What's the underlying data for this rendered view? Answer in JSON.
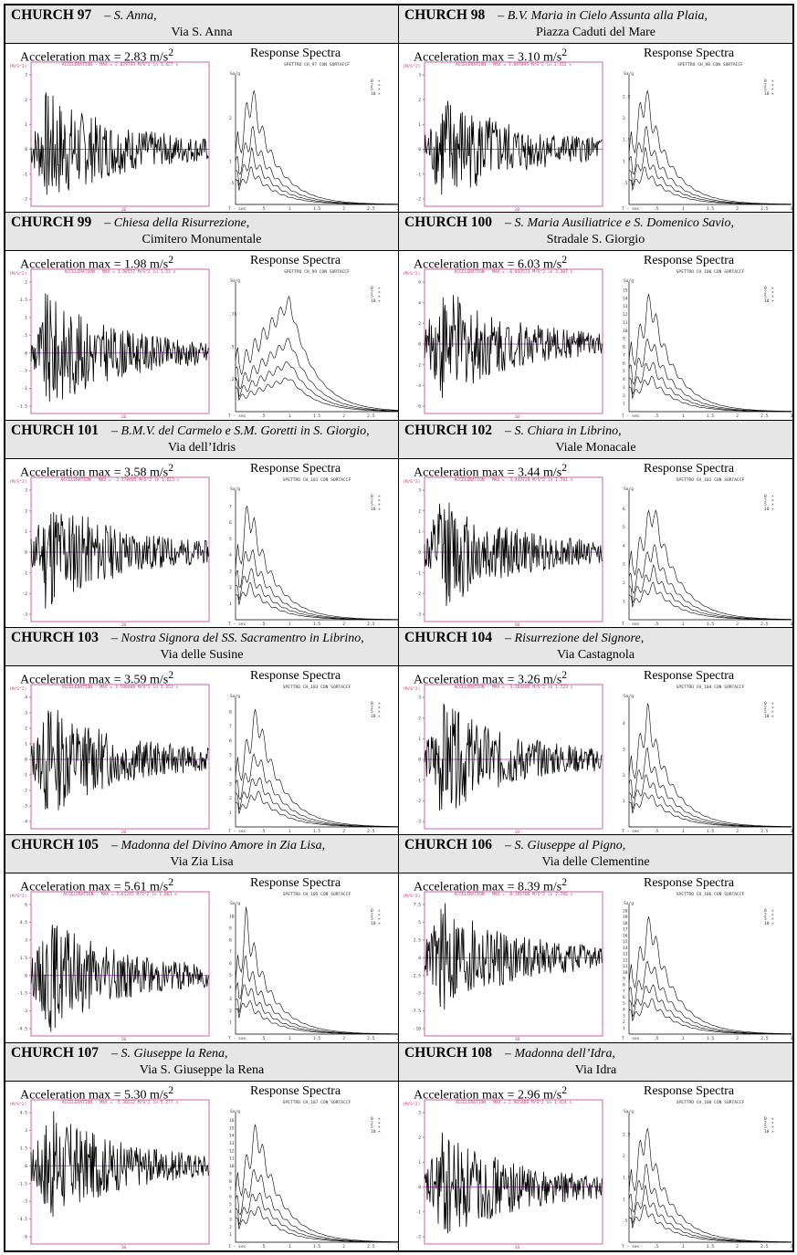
{
  "common": {
    "response_spectra_label": "Response Spectra",
    "acc_axis_label": "(M/S^2)",
    "time_tick_label": "10",
    "spectra_ylabel": "Sa/g",
    "spectra_xlabel": "T - sec",
    "period_ticks": [
      ".5",
      "1",
      "1.5",
      "2",
      "2.5",
      "3"
    ],
    "damping_legend": [
      "0",
      "2",
      "5",
      "10"
    ]
  },
  "churches": [
    {
      "num": "CHURCH 97",
      "name": "S. Anna",
      "address": "Via S. Anna",
      "acc_value": "2.83",
      "acc_unit": "m/s",
      "acc_exp": "2",
      "acc_caption": "ACCELERATION - MAX = 2.829793 M/S^2 in 1.427 s",
      "spec_caption": "SPETTRO CH_97 CON SORTACCF",
      "acc_ticks": [
        "3",
        "2",
        "1",
        "0",
        "-1",
        "-2"
      ],
      "spec_ticks": [
        "2",
        ".5",
        "1"
      ],
      "spec_ymax": 3,
      "peak_period": 0.3
    },
    {
      "num": "CHURCH 98",
      "name": "B.V. Maria in Cielo Assunta alla Plaia",
      "address": "Piazza Caduti del Mare",
      "acc_value": "3.10",
      "acc_unit": "m/s",
      "acc_exp": "2",
      "acc_caption": "ACCELERATION - MAX = 3.097895 M/S^2 in 1.432 s",
      "spec_caption": "SPETTRO CH_98 CON SORTACCF",
      "acc_ticks": [
        "3",
        "2",
        "1",
        "0",
        "-1",
        "-2"
      ],
      "spec_ticks": [
        "2.5",
        "2",
        "1.5",
        "1",
        ".5"
      ],
      "spec_ymax": 3,
      "peak_period": 0.3
    },
    {
      "num": "CHURCH 99",
      "name": "Chiesa della Risurrezione",
      "address": "Cimitero Monumentale",
      "acc_value": "1.98",
      "acc_unit": "m/s",
      "acc_exp": "2",
      "acc_caption": "ACCELERATION - MAX = 1.98557 M/S^2 in 1.53 s",
      "spec_caption": "SPETTRO CH_99 CON SORTACCF",
      "acc_ticks": [
        "2",
        "1.5",
        "1",
        ".5",
        "0",
        "-.5",
        "-1",
        "-1.5"
      ],
      "spec_ticks": [
        ".75",
        ".5",
        ".25"
      ],
      "spec_ymax": 1,
      "peak_period": 1.0
    },
    {
      "num": "CHURCH 100",
      "name": "S. Maria Ausiliatrice e S. Domenico Savio",
      "address": "Stradale S. Giorgio",
      "acc_value": "6.03",
      "acc_unit": "m/s",
      "acc_exp": "2",
      "acc_caption": "ACCELERATION - MAX = -6.033573 M/S^2 in 3.307 s",
      "spec_caption": "SPETTRO CH_100 CON SORTACCF",
      "acc_ticks": [
        "6",
        "4",
        "2",
        "0",
        "-2",
        "-4",
        "-6"
      ],
      "spec_ticks": [
        "15",
        "14",
        "13",
        "12",
        "11",
        "10",
        "9",
        "8",
        "7",
        "6",
        "5",
        "4",
        "3",
        "2",
        "1"
      ],
      "spec_ymax": 16,
      "peak_period": 0.4
    },
    {
      "num": "CHURCH 101",
      "name": "B.M.V. del Carmelo e S.M. Goretti in S. Giorgio",
      "address": "Via dell’Idris",
      "acc_value": "3.58",
      "acc_unit": "m/s",
      "acc_exp": "2",
      "acc_caption": "ACCELERATION - MAX = -3.578405 M/S^2 in 1.613 s",
      "spec_caption": "SPETTRO CH_101 CON SORTACCF",
      "acc_ticks": [
        "3",
        "2",
        "1",
        "0",
        "-1",
        "-2",
        "-3"
      ],
      "spec_ticks": [
        "7",
        "6",
        "5",
        "4",
        "3",
        "2",
        "1"
      ],
      "spec_ymax": 8,
      "peak_period": 0.25
    },
    {
      "num": "CHURCH 102",
      "name": "S. Chiara in Librino",
      "address": "Viale Monacale",
      "acc_value": "3.44",
      "acc_unit": "m/s",
      "acc_exp": "2",
      "acc_caption": "ACCELERATION - MAX = -3.443729 M/S^2 in 1.701 s",
      "spec_caption": "SPETTRO CH_102 CON SORTACCF",
      "acc_ticks": [
        "3",
        "2",
        "1",
        "0",
        "-1",
        "-2",
        "-3"
      ],
      "spec_ticks": [
        "6",
        "5",
        "4",
        "3",
        "2",
        "1"
      ],
      "spec_ymax": 7,
      "peak_period": 0.45
    },
    {
      "num": "CHURCH 103",
      "name": "Nostra Signora del SS. Sacramentro in Librino",
      "address": "Via delle Susine",
      "acc_value": "3.59",
      "acc_unit": "m/s",
      "acc_exp": "2",
      "acc_caption": "ACCELERATION - MAX = 3.590488 M/S^2 in 3.351 s",
      "spec_caption": "SPETTRO CH_103 CON SORTACCF",
      "acc_ticks": [
        "4",
        "3",
        "2",
        "1",
        "0",
        "-1",
        "-2",
        "-3",
        "-4"
      ],
      "spec_ticks": [
        "8",
        "7",
        "6",
        "5",
        "4",
        "3",
        "2",
        "1"
      ],
      "spec_ymax": 9,
      "peak_period": 0.4
    },
    {
      "num": "CHURCH 104",
      "name": "Risurrezione del Signore",
      "address": "Via Castagnola",
      "acc_value": "3.26",
      "acc_unit": "m/s",
      "acc_exp": "2",
      "acc_caption": "ACCELERATION - MAX = -3.264489 M/S^2 in 1.723 s",
      "spec_caption": "SPETTRO CH_104 CON SORTACCF",
      "acc_ticks": [
        "3",
        "2",
        "1",
        "0",
        "-1",
        "-2",
        "-3"
      ],
      "spec_ticks": [
        "4",
        "3",
        "2",
        "1"
      ],
      "spec_ymax": 5,
      "peak_period": 0.35
    },
    {
      "num": "CHURCH 105",
      "name": "Madonna del Divino Amore in Zia Lisa",
      "address": "Via Zia Lisa",
      "acc_value": "5.61",
      "acc_unit": "m/s",
      "acc_exp": "2",
      "acc_caption": "ACCELERATION - MAX = 5.61245 M/S^2 in 1.063 s",
      "spec_caption": "SPETTRO CH_105 CON SORTACCF",
      "acc_ticks": [
        "6",
        "4.5",
        "3",
        "1.5",
        "0",
        "-1.5",
        "-3",
        "-4.5"
      ],
      "spec_ticks": [
        "10",
        "9",
        "8",
        "7",
        "6",
        "5",
        "4",
        "3",
        "2",
        "1"
      ],
      "spec_ymax": 11,
      "peak_period": 0.2
    },
    {
      "num": "CHURCH 106",
      "name": "S. Giuseppe al Pigno",
      "address": "Via delle Clementine",
      "acc_value": "8.39",
      "acc_unit": "m/s",
      "acc_exp": "2",
      "acc_caption": "ACCELERATION - MAX = -8.391706 M/S^2 in 2.706 s",
      "spec_caption": "SPETTRO CH_106 CON SORTACCF",
      "acc_ticks": [
        "7.5",
        "5",
        "2.5",
        "0",
        "-2.5",
        "-5",
        "-7.5",
        "-10"
      ],
      "spec_ticks": [
        "20",
        "19",
        "18",
        "17",
        "16",
        "15",
        "14",
        "13",
        "12",
        "11",
        "10",
        "9",
        "8",
        "7",
        "6",
        "5",
        "4",
        "3",
        "2",
        "1"
      ],
      "spec_ymax": 21,
      "peak_period": 0.4
    },
    {
      "num": "CHURCH 107",
      "name": "S. Giuseppe la Rena",
      "address": "Via S. Giuseppe la Rena",
      "acc_value": "5.30",
      "acc_unit": "m/s",
      "acc_exp": "2",
      "acc_caption": "ACCELERATION - MAX = -5.30212 M/S^2 in 5.277 s",
      "spec_caption": "SPETTRO CH_107 CON SORTACCF",
      "acc_ticks": [
        "4.5",
        "3",
        "1.5",
        "0",
        "-1.5",
        "-3",
        "-4.5",
        "-6"
      ],
      "spec_ticks": [
        "16",
        "15",
        "14",
        "13",
        "12",
        "11",
        "10",
        "9",
        "8",
        "7",
        "6",
        "5",
        "4",
        "3",
        "2",
        "1"
      ],
      "spec_ymax": 17,
      "peak_period": 0.4
    },
    {
      "num": "CHURCH 108",
      "name": "Madonna dell’Idra",
      "address": "Via Idra",
      "acc_value": "2.96",
      "acc_unit": "m/s",
      "acc_exp": "2",
      "acc_caption": "ACCELERATION - MAX = 2.965488 M/S^2 in 1.424 s",
      "spec_caption": "SPETTRO CH_108 CON SORTACCF",
      "acc_ticks": [
        "3",
        "2",
        "1",
        "0",
        "-1",
        "-2"
      ],
      "spec_ticks": [
        "2.5",
        "2",
        "1.5",
        "1",
        ".5"
      ],
      "spec_ymax": 3,
      "peak_period": 0.3
    }
  ]
}
